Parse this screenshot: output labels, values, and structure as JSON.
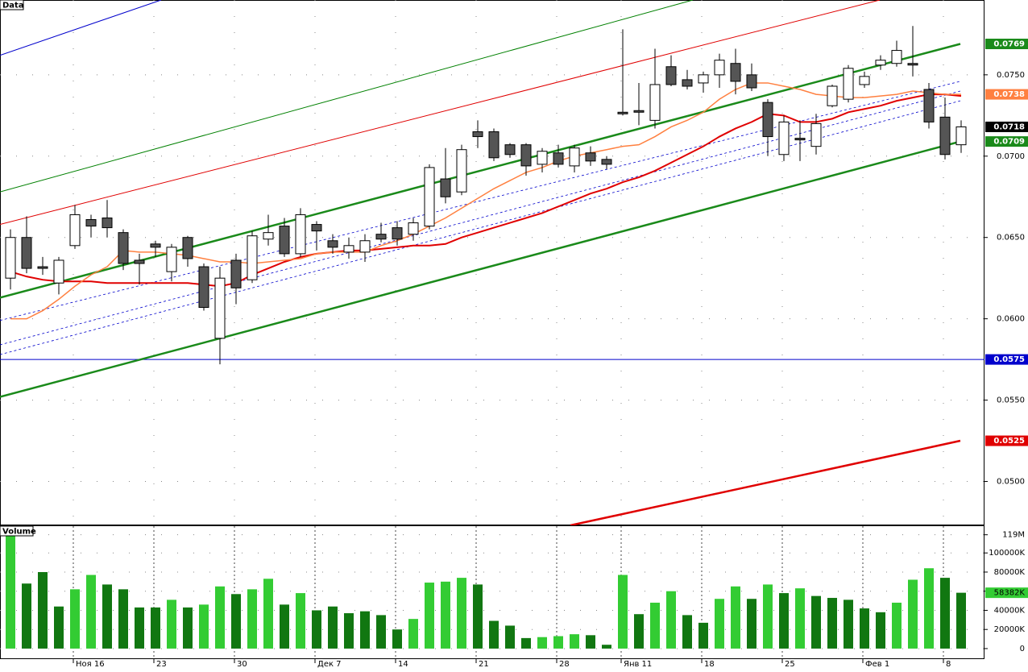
{
  "chart_data": [
    {
      "type": "candlestick",
      "title": "Data",
      "open": [
        0.0625,
        0.065,
        0.0632,
        0.0622,
        0.0645,
        0.0661,
        0.0662,
        0.0653,
        0.0636,
        0.0646,
        0.0629,
        0.065,
        0.0632,
        0.0588,
        0.0636,
        0.0624,
        0.0649,
        0.0657,
        0.064,
        0.0658,
        0.0648,
        0.0641,
        0.0641,
        0.0652,
        0.0656,
        0.0652,
        0.0657,
        0.0686,
        0.0678,
        0.0715,
        0.0715,
        0.0707,
        0.0707,
        0.0695,
        0.0702,
        0.0694,
        0.0702,
        0.0698,
        0.0727,
        0.0728,
        0.0722,
        0.0755,
        0.0747,
        0.0745,
        0.075,
        0.0757,
        0.075,
        0.0733,
        0.0701,
        0.0711,
        0.0706,
        0.0731,
        0.0735,
        0.0744,
        0.0756,
        0.0757,
        0.0757,
        0.0741,
        0.0724,
        0.0707
      ],
      "high": [
        0.0655,
        0.0663,
        0.0638,
        0.0638,
        0.067,
        0.0664,
        0.0673,
        0.0655,
        0.064,
        0.0648,
        0.0646,
        0.0651,
        0.0634,
        0.0632,
        0.064,
        0.0654,
        0.0664,
        0.0662,
        0.0668,
        0.066,
        0.0652,
        0.065,
        0.0652,
        0.0659,
        0.066,
        0.0662,
        0.0695,
        0.0705,
        0.0707,
        0.0722,
        0.0717,
        0.0708,
        0.0708,
        0.0705,
        0.0707,
        0.0707,
        0.0706,
        0.07,
        0.0778,
        0.0745,
        0.0766,
        0.0762,
        0.0753,
        0.0752,
        0.0763,
        0.0766,
        0.0757,
        0.0735,
        0.0725,
        0.0722,
        0.0726,
        0.0744,
        0.0756,
        0.0752,
        0.0762,
        0.0771,
        0.078,
        0.0745,
        0.0736,
        0.0722
      ],
      "low": [
        0.0618,
        0.0628,
        0.0627,
        0.0615,
        0.0643,
        0.065,
        0.065,
        0.063,
        0.0621,
        0.0638,
        0.0623,
        0.0632,
        0.0605,
        0.0572,
        0.0609,
        0.0622,
        0.0645,
        0.0638,
        0.0638,
        0.0642,
        0.064,
        0.0637,
        0.0635,
        0.0647,
        0.0645,
        0.0648,
        0.0655,
        0.0671,
        0.0676,
        0.0705,
        0.0697,
        0.0699,
        0.0688,
        0.069,
        0.0693,
        0.069,
        0.0694,
        0.0692,
        0.0725,
        0.0719,
        0.0717,
        0.0743,
        0.0741,
        0.0739,
        0.0742,
        0.0738,
        0.074,
        0.07,
        0.0697,
        0.0697,
        0.0701,
        0.073,
        0.0733,
        0.0742,
        0.0753,
        0.0755,
        0.0749,
        0.0717,
        0.0698,
        0.0702
      ],
      "close": [
        0.065,
        0.0631,
        0.0631,
        0.0636,
        0.0664,
        0.0657,
        0.0656,
        0.0634,
        0.0634,
        0.0644,
        0.0644,
        0.0637,
        0.0607,
        0.0625,
        0.0619,
        0.0651,
        0.0653,
        0.064,
        0.0664,
        0.0654,
        0.0644,
        0.0645,
        0.0648,
        0.0649,
        0.0649,
        0.0659,
        0.0693,
        0.0675,
        0.0704,
        0.0712,
        0.0699,
        0.0701,
        0.0694,
        0.0703,
        0.0695,
        0.0705,
        0.0697,
        0.0695,
        0.0726,
        0.0727,
        0.0744,
        0.0744,
        0.0743,
        0.075,
        0.0759,
        0.0746,
        0.0742,
        0.0712,
        0.0721,
        0.071,
        0.072,
        0.0743,
        0.0754,
        0.0749,
        0.0759,
        0.0765,
        0.0756,
        0.0721,
        0.0701,
        0.0718
      ],
      "series": [
        {
          "color": "#e00000",
          "width": 2,
          "values": [
            0.0629,
            0.0626,
            0.0624,
            0.0623,
            0.0623,
            0.0623,
            0.0622,
            0.0622,
            0.0622,
            0.0622,
            0.0622,
            0.0622,
            0.0621,
            0.062,
            0.0622,
            0.0627,
            0.0631,
            0.0635,
            0.0638,
            0.064,
            0.0641,
            0.0642,
            0.0642,
            0.0643,
            0.0644,
            0.0645,
            0.0645,
            0.0646,
            0.065,
            0.0653,
            0.0656,
            0.0659,
            0.0662,
            0.0665,
            0.0669,
            0.0673,
            0.0677,
            0.068,
            0.0684,
            0.0687,
            0.0691,
            0.0696,
            0.0701,
            0.0706,
            0.0712,
            0.0717,
            0.0721,
            0.0726,
            0.0725,
            0.0721,
            0.0721,
            0.0723,
            0.0727,
            0.0729,
            0.0731,
            0.0734,
            0.0736,
            0.0738,
            0.0738,
            0.0737
          ]
        },
        {
          "color": "#ff8040",
          "width": 1.5,
          "values": [
            0.06,
            0.06,
            0.0605,
            0.0612,
            0.062,
            0.0627,
            0.0632,
            0.0642,
            0.0641,
            0.0641,
            0.064,
            0.0639,
            0.0637,
            0.0635,
            0.0635,
            0.0634,
            0.0635,
            0.0636,
            0.0637,
            0.064,
            0.0641,
            0.0641,
            0.0641,
            0.0645,
            0.0648,
            0.0652,
            0.0657,
            0.0662,
            0.0668,
            0.0674,
            0.068,
            0.0685,
            0.069,
            0.0693,
            0.0697,
            0.07,
            0.0702,
            0.0704,
            0.0706,
            0.0707,
            0.0712,
            0.0718,
            0.0722,
            0.0727,
            0.0735,
            0.0741,
            0.0745,
            0.0745,
            0.0743,
            0.0741,
            0.0738,
            0.0737,
            0.0736,
            0.0736,
            0.0737,
            0.0738,
            0.074,
            0.0739,
            0.0738,
            0.0738
          ]
        }
      ],
      "trendlines": [
        {
          "x": [
            -0.65,
            58.95
          ],
          "y": [
            0.0599,
            0.0746
          ],
          "color": "#0000cc",
          "width": 0.8,
          "dash": true
        },
        {
          "x": [
            -0.65,
            58.95
          ],
          "y": [
            0.0584,
            0.074
          ],
          "color": "#0000cc",
          "width": 0.8,
          "dash": true
        },
        {
          "x": [
            -0.65,
            58.95
          ],
          "y": [
            0.0578,
            0.0734
          ],
          "color": "#0000cc",
          "width": 0.8,
          "dash": true
        },
        {
          "x": [
            -0.65,
            9.35
          ],
          "y": [
            0.0762,
            0.0796
          ],
          "color": "#0000cc",
          "width": 1,
          "dash": false
        },
        {
          "x": [
            -0.65,
            42.35
          ],
          "y": [
            0.0678,
            0.0796
          ],
          "color": "#008000",
          "width": 1,
          "dash": false
        },
        {
          "x": [
            -0.65,
            53.95
          ],
          "y": [
            0.0658,
            0.0796
          ],
          "color": "#e00000",
          "width": 1,
          "dash": false
        },
        {
          "x": [
            -0.65,
            60.45
          ],
          "y": [
            0.0575,
            0.0575
          ],
          "color": "#0000cc",
          "width": 1,
          "dash": false
        },
        {
          "x": [
            -0.65,
            58.95
          ],
          "y": [
            0.0613,
            0.0769
          ],
          "color": "#1a8a1a",
          "width": 2.5,
          "dash": false
        },
        {
          "x": [
            -0.65,
            58.95
          ],
          "y": [
            0.0552,
            0.0709
          ],
          "color": "#1a8a1a",
          "width": 2.5,
          "dash": false
        },
        {
          "x": [
            34.75,
            58.95
          ],
          "y": [
            0.0473,
            0.0525
          ],
          "color": "#e00000",
          "width": 2.5,
          "dash": false
        }
      ],
      "up_color": "#ffffff",
      "down_color": "#555555",
      "ylim": [
        0.0473,
        0.0796
      ],
      "yticks": [
        {
          "value": 0.075,
          "label": "0.0750"
        },
        {
          "value": 0.07,
          "label": "0.0700"
        },
        {
          "value": 0.065,
          "label": "0.0650"
        },
        {
          "value": 0.06,
          "label": "0.0600"
        },
        {
          "value": 0.055,
          "label": "0.0550"
        },
        {
          "value": 0.05,
          "label": "0.0500"
        }
      ],
      "price_tags": [
        {
          "value": 0.0769,
          "color": "#1a8a1a"
        },
        {
          "value": 0.0738,
          "color": "#ff8040"
        },
        {
          "value": 0.0718,
          "color": "#000000"
        },
        {
          "value": 0.0709,
          "color": "#1a8a1a"
        },
        {
          "value": 0.0575,
          "color": "#0000cc"
        },
        {
          "value": 0.0525,
          "color": "#e00000"
        }
      ],
      "grid": true
    },
    {
      "type": "bar",
      "title": "Volume",
      "categories": [
        null,
        null,
        null,
        null,
        "Ноя 16",
        null,
        null,
        null,
        null,
        "23",
        null,
        null,
        null,
        null,
        "30",
        null,
        null,
        null,
        null,
        "Дек 7",
        null,
        null,
        null,
        null,
        "14",
        null,
        null,
        null,
        null,
        "21",
        null,
        null,
        null,
        null,
        "28",
        null,
        null,
        null,
        "Янв 11",
        null,
        null,
        null,
        null,
        "18",
        null,
        null,
        null,
        null,
        "25",
        null,
        null,
        null,
        null,
        "Фев 1",
        null,
        null,
        null,
        null,
        "8",
        null
      ],
      "values": [
        118000,
        68000,
        80000,
        44000,
        62000,
        77000,
        67000,
        62000,
        43000,
        43000,
        51000,
        43000,
        46000,
        65000,
        57000,
        62000,
        73000,
        46000,
        58000,
        40000,
        44000,
        37000,
        39000,
        35000,
        20000,
        31000,
        69000,
        70000,
        74000,
        67000,
        29000,
        24000,
        11000,
        12000,
        13000,
        15000,
        14000,
        4000,
        77000,
        36000,
        48000,
        60000,
        35000,
        27000,
        52000,
        65000,
        52000,
        67000,
        58000,
        63000,
        55000,
        53000,
        51000,
        42000,
        38000,
        48000,
        72000,
        84000,
        74000,
        58382
      ],
      "colors": [
        "#33cc33",
        "#117711",
        "#117711",
        "#117711",
        "#33cc33",
        "#33cc33",
        "#117711",
        "#117711",
        "#117711",
        "#117711",
        "#33cc33",
        "#117711",
        "#33cc33",
        "#33cc33",
        "#117711",
        "#33cc33",
        "#33cc33",
        "#117711",
        "#33cc33",
        "#117711",
        "#117711",
        "#117711",
        "#117711",
        "#117711",
        "#117711",
        "#33cc33",
        "#33cc33",
        "#33cc33",
        "#33cc33",
        "#117711",
        "#117711",
        "#117711",
        "#117711",
        "#33cc33",
        "#33cc33",
        "#33cc33",
        "#117711",
        "#117711",
        "#33cc33",
        "#117711",
        "#33cc33",
        "#33cc33",
        "#117711",
        "#117711",
        "#33cc33",
        "#33cc33",
        "#117711",
        "#33cc33",
        "#117711",
        "#33cc33",
        "#117711",
        "#117711",
        "#117711",
        "#117711",
        "#117711",
        "#33cc33",
        "#33cc33",
        "#33cc33",
        "#117711",
        "#117711"
      ],
      "ylim": [
        -11000,
        128000
      ],
      "yticks": [
        {
          "value": 119000,
          "label": "119M"
        },
        {
          "value": 100000,
          "label": "100000K"
        },
        {
          "value": 80000,
          "label": "80000K"
        },
        {
          "value": 60000,
          "label": "60000K"
        },
        {
          "value": 40000,
          "label": "40000K"
        },
        {
          "value": 20000,
          "label": "20000K"
        },
        0
      ],
      "value_tag": {
        "value": 58382,
        "label": "58382K",
        "color": "#33cc33"
      },
      "grid": true
    }
  ]
}
